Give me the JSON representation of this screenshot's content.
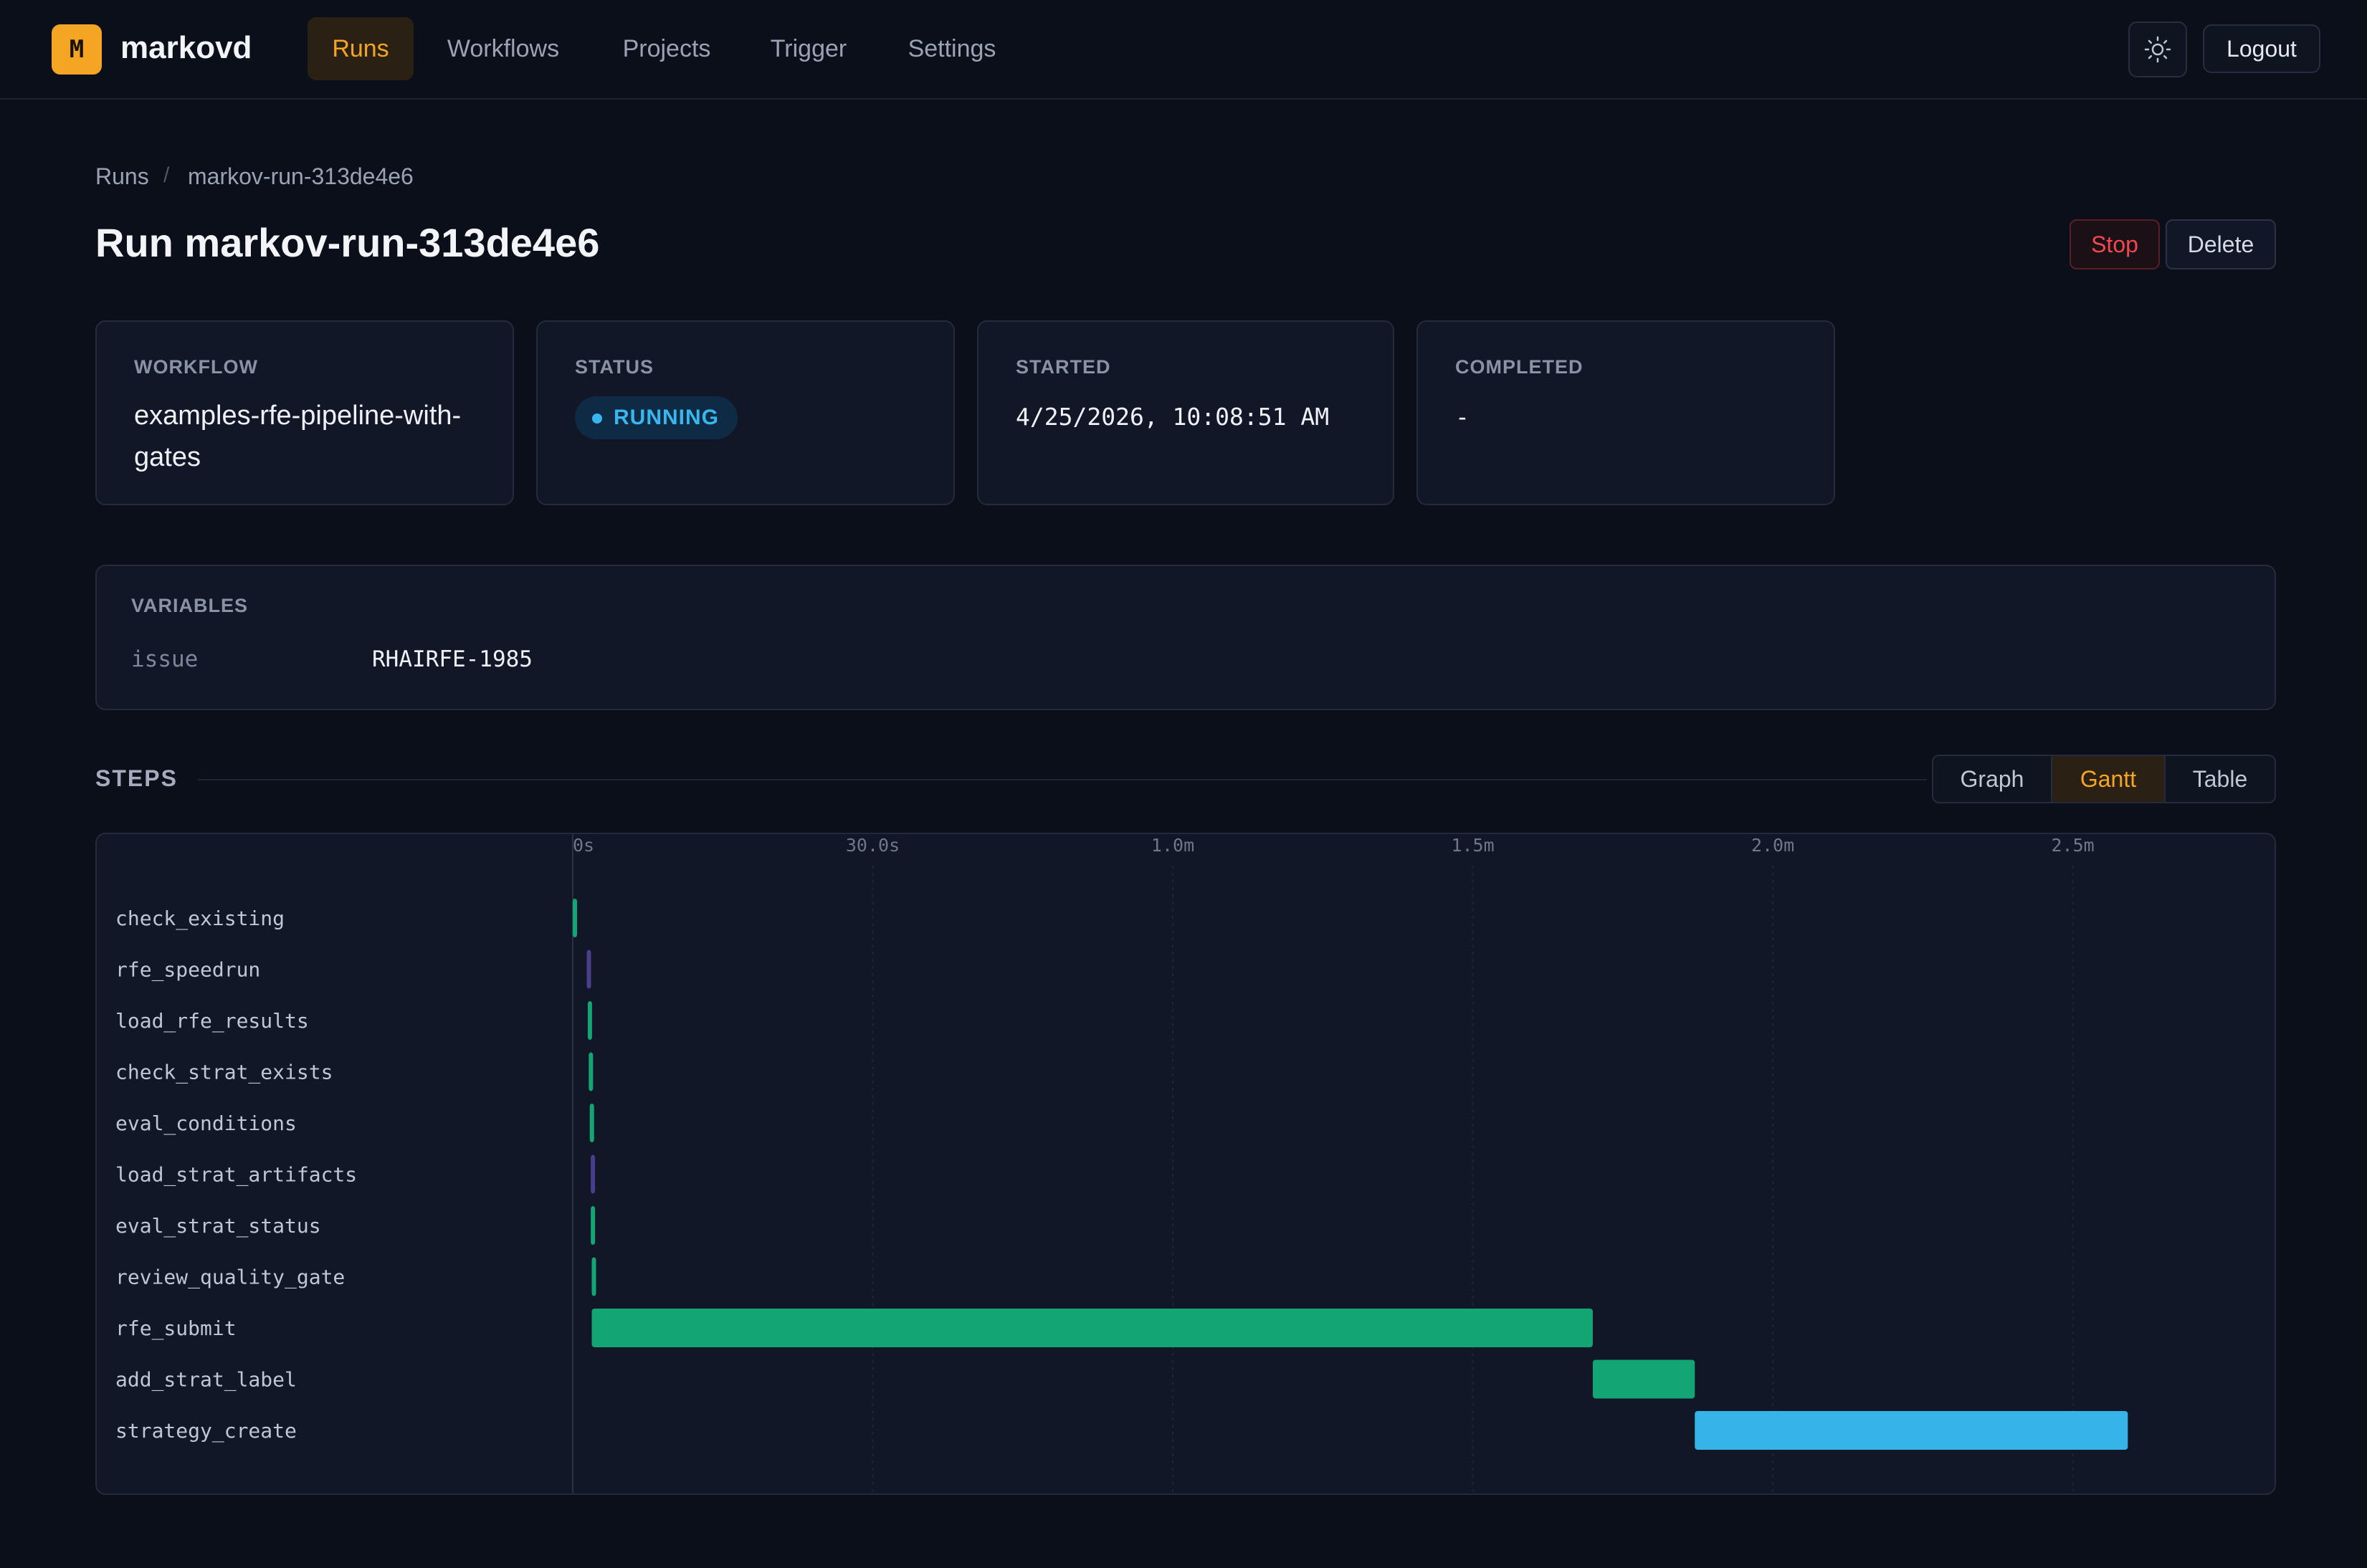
{
  "app": {
    "logo_letter": "M",
    "brand": "markovd",
    "accent": "#f5a524"
  },
  "nav": {
    "items": [
      {
        "label": "Runs",
        "active": true
      },
      {
        "label": "Workflows",
        "active": false
      },
      {
        "label": "Projects",
        "active": false
      },
      {
        "label": "Trigger",
        "active": false
      },
      {
        "label": "Settings",
        "active": false
      }
    ],
    "theme_icon": "sun-icon",
    "logout_label": "Logout"
  },
  "breadcrumb": {
    "root": "Runs",
    "separator": "/",
    "current": "markov-run-313de4e6"
  },
  "page": {
    "title": "Run markov-run-313de4e6",
    "stop_label": "Stop",
    "delete_label": "Delete"
  },
  "cards": {
    "workflow": {
      "label": "WORKFLOW",
      "value": "examples-rfe-pipeline-with-gates"
    },
    "status": {
      "label": "STATUS",
      "value": "RUNNING",
      "color": "#38b6ee"
    },
    "started": {
      "label": "STARTED",
      "value": "4/25/2026, 10:08:51 AM"
    },
    "completed": {
      "label": "COMPLETED",
      "value": "-"
    }
  },
  "variables": {
    "label": "VARIABLES",
    "items": [
      {
        "key": "issue",
        "value": "RHAIRFE-1985"
      }
    ]
  },
  "steps": {
    "label": "STEPS",
    "views": [
      {
        "label": "Graph",
        "active": false
      },
      {
        "label": "Gantt",
        "active": true
      },
      {
        "label": "Table",
        "active": false
      }
    ]
  },
  "chart_data": {
    "type": "gantt",
    "x_unit": "seconds",
    "xlim": [
      0,
      162
    ],
    "ticks": [
      {
        "value": 0,
        "label": "0s"
      },
      {
        "value": 30,
        "label": "30.0s"
      },
      {
        "value": 60,
        "label": "1.0m"
      },
      {
        "value": 90,
        "label": "1.5m"
      },
      {
        "value": 120,
        "label": "2.0m"
      },
      {
        "value": 150,
        "label": "2.5m"
      }
    ],
    "status_colors": {
      "succeeded": "#14a574",
      "skipped": "#4a3f8a",
      "running": "#36b3e8"
    },
    "steps": [
      {
        "name": "check_existing",
        "start": 0.0,
        "end": 0.4,
        "status": "succeeded"
      },
      {
        "name": "rfe_speedrun",
        "start": 1.4,
        "end": 1.8,
        "status": "skipped"
      },
      {
        "name": "load_rfe_results",
        "start": 1.5,
        "end": 1.9,
        "status": "succeeded"
      },
      {
        "name": "check_strat_exists",
        "start": 1.6,
        "end": 2.0,
        "status": "succeeded"
      },
      {
        "name": "eval_conditions",
        "start": 1.7,
        "end": 2.1,
        "status": "succeeded"
      },
      {
        "name": "load_strat_artifacts",
        "start": 1.8,
        "end": 2.2,
        "status": "skipped"
      },
      {
        "name": "eval_strat_status",
        "start": 1.8,
        "end": 2.2,
        "status": "succeeded"
      },
      {
        "name": "review_quality_gate",
        "start": 1.9,
        "end": 2.3,
        "status": "succeeded"
      },
      {
        "name": "rfe_submit",
        "start": 1.9,
        "end": 102.0,
        "status": "succeeded"
      },
      {
        "name": "add_strat_label",
        "start": 102.0,
        "end": 112.2,
        "status": "succeeded"
      },
      {
        "name": "strategy_create",
        "start": 112.2,
        "end": 155.5,
        "status": "running"
      }
    ]
  }
}
